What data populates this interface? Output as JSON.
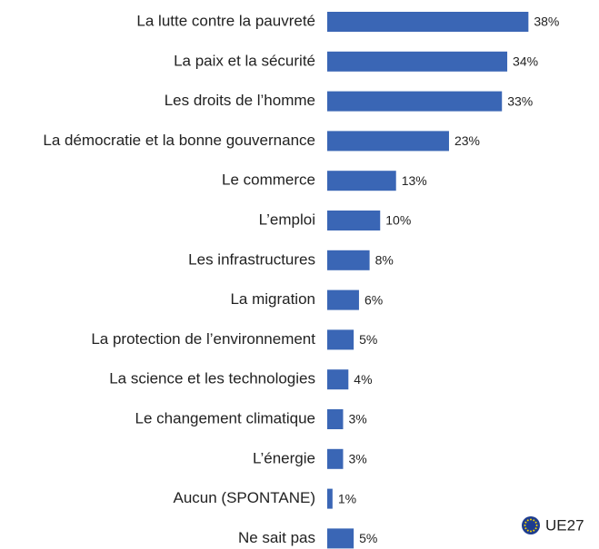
{
  "chart_data": {
    "type": "hbar",
    "categories": [
      "La lutte contre la pauvreté",
      "La paix et la sécurité",
      "Les droits de l’homme",
      "La démocratie et la bonne gouvernance",
      "Le commerce",
      "L’emploi",
      "Les infrastructures",
      "La migration",
      "La protection de l’environnement",
      "La science et les technologies",
      "Le changement climatique",
      "L’énergie",
      "Aucun (SPONTANE)",
      "Ne sait pas"
    ],
    "series": [
      {
        "name": "UE27",
        "color": "#3a66b5",
        "values": [
          38,
          34,
          33,
          23,
          13,
          10,
          8,
          6,
          5,
          4,
          3,
          3,
          1,
          5
        ],
        "value_labels": [
          "38%",
          "34%",
          "33%",
          "23%",
          "13%",
          "10%",
          "8%",
          "6%",
          "5%",
          "4%",
          "3%",
          "3%",
          "1%",
          "5%"
        ]
      }
    ],
    "xlim": [
      0,
      40
    ]
  }
}
